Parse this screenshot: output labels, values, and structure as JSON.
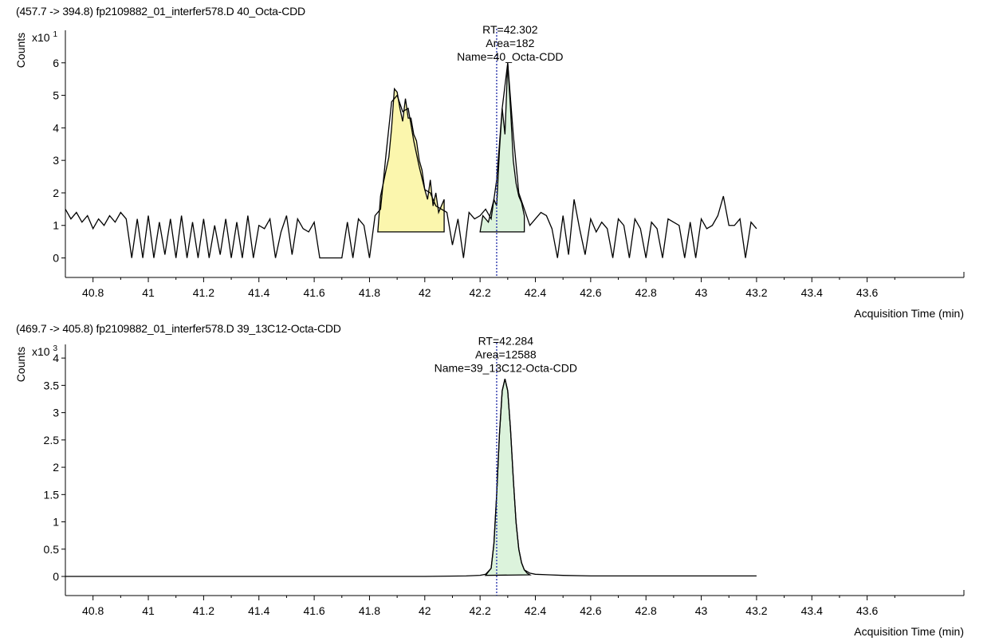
{
  "chart_data": [
    {
      "type": "line",
      "title": "(457.7 -> 394.8) fp2109882_01_interfer578.D 40_Octa-CDD",
      "ylabel": "Counts",
      "ymultiplier": "x10 1",
      "xlabel": "Acquisition Time (min)",
      "xlim": [
        40.7,
        43.95
      ],
      "ylim": [
        -0.6,
        7.0
      ],
      "yticks": [
        "0",
        "1",
        "2",
        "3",
        "4",
        "5",
        "6"
      ],
      "xticks": [
        "40.8",
        "41",
        "41.2",
        "41.4",
        "41.6",
        "41.8",
        "42",
        "42.2",
        "42.4",
        "42.6",
        "42.8",
        "43",
        "43.2",
        "43.4",
        "43.6"
      ],
      "grid": false,
      "marker_rt": 42.26,
      "annotation": [
        "RT=42.302",
        "Area=182",
        "Name=40_Octa-CDD"
      ],
      "annotation_at": {
        "x": 42.3,
        "y": 6.0
      },
      "peaks": [
        {
          "color": "#fbf6ad",
          "x": [
            41.83,
            41.84,
            41.87,
            41.88,
            41.89,
            41.9,
            41.91,
            41.92,
            41.93,
            41.94,
            41.95,
            41.96,
            41.97,
            41.98,
            41.99,
            42.0,
            42.01,
            42.02,
            42.03,
            42.04,
            42.05,
            42.07,
            42.07
          ],
          "y": [
            0.8,
            1.9,
            3.1,
            4.0,
            5.2,
            5.1,
            4.6,
            4.2,
            4.9,
            4.3,
            4.3,
            3.8,
            3.6,
            3.0,
            2.7,
            2.1,
            1.8,
            2.4,
            1.6,
            2.0,
            1.4,
            1.8,
            0.8
          ]
        },
        {
          "color": "#dcf3dc",
          "x": [
            42.2,
            42.21,
            42.23,
            42.25,
            42.26,
            42.27,
            42.28,
            42.29,
            42.3,
            42.31,
            42.32,
            42.33,
            42.34,
            42.35,
            42.36,
            42.36
          ],
          "y": [
            0.8,
            1.3,
            1.1,
            1.8,
            1.6,
            3.3,
            4.6,
            3.8,
            6.0,
            4.6,
            3.0,
            2.3,
            1.9,
            1.7,
            1.3,
            0.8
          ]
        }
      ],
      "series": [
        {
          "x": [
            40.7,
            40.72,
            40.74,
            40.76,
            40.78,
            40.8,
            40.82,
            40.84,
            40.86,
            40.88,
            40.9,
            40.92,
            40.94,
            40.96,
            40.98,
            41.0,
            41.02,
            41.04,
            41.06,
            41.08,
            41.1,
            41.12,
            41.14,
            41.16,
            41.18,
            41.2,
            41.22,
            41.24,
            41.26,
            41.28,
            41.3,
            41.32,
            41.34,
            41.36,
            41.38,
            41.4,
            41.42,
            41.44,
            41.46,
            41.48,
            41.5,
            41.52,
            41.54,
            41.56,
            41.58,
            41.6,
            41.62,
            41.64,
            41.66,
            41.68,
            41.7,
            41.72,
            41.74,
            41.76,
            41.78,
            41.8,
            41.82,
            41.84,
            41.86,
            41.88,
            41.9,
            41.92,
            41.94,
            41.96,
            41.98,
            42.0,
            42.02,
            42.04,
            42.06,
            42.08,
            42.1,
            42.12,
            42.14,
            42.16,
            42.18,
            42.2,
            42.22,
            42.24,
            42.26,
            42.28,
            42.3,
            42.32,
            42.34,
            42.36,
            42.38,
            42.4,
            42.42,
            42.44,
            42.46,
            42.48,
            42.5,
            42.52,
            42.54,
            42.56,
            42.58,
            42.6,
            42.62,
            42.64,
            42.66,
            42.68,
            42.7,
            42.72,
            42.74,
            42.76,
            42.78,
            42.8,
            42.82,
            42.84,
            42.86,
            42.88,
            42.9,
            42.92,
            42.94,
            42.96,
            42.98,
            43.0,
            43.02,
            43.04,
            43.06,
            43.08,
            43.1,
            43.12,
            43.14,
            43.16,
            43.18,
            43.2
          ],
          "y": [
            1.5,
            1.2,
            1.4,
            1.1,
            1.3,
            0.9,
            1.2,
            1.0,
            1.3,
            1.1,
            1.4,
            1.2,
            0.0,
            1.2,
            0.0,
            1.3,
            0.0,
            1.1,
            0.1,
            1.2,
            0.0,
            1.3,
            0.0,
            1.1,
            0.0,
            1.2,
            0.0,
            1.0,
            0.1,
            1.2,
            0.0,
            1.1,
            0.0,
            1.3,
            0.0,
            1.0,
            0.9,
            1.2,
            0.0,
            0.8,
            1.3,
            0.1,
            1.2,
            0.9,
            0.8,
            1.1,
            0.0,
            0.0,
            0.0,
            0.0,
            0.0,
            1.1,
            0.0,
            1.2,
            1.0,
            0.0,
            1.3,
            1.5,
            3.2,
            4.8,
            5.0,
            4.5,
            4.6,
            3.6,
            2.8,
            2.1,
            2.0,
            1.6,
            1.5,
            1.4,
            0.4,
            1.2,
            0.0,
            1.4,
            1.2,
            1.3,
            1.5,
            1.2,
            2.4,
            4.6,
            6.0,
            3.8,
            2.0,
            1.5,
            1.0,
            1.2,
            1.4,
            1.3,
            0.9,
            0.0,
            1.3,
            0.1,
            1.8,
            0.9,
            0.1,
            1.2,
            0.8,
            1.1,
            0.9,
            0.0,
            1.2,
            1.0,
            0.0,
            1.2,
            0.9,
            0.0,
            1.1,
            0.9,
            0.0,
            1.2,
            1.1,
            1.0,
            0.0,
            1.1,
            0.0,
            1.2,
            0.9,
            1.0,
            1.3,
            1.9,
            1.0,
            1.0,
            1.2,
            0.0,
            1.1,
            0.9
          ]
        }
      ]
    },
    {
      "type": "line",
      "title": "(469.7 -> 405.8) fp2109882_01_interfer578.D 39_13C12-Octa-CDD",
      "ylabel": "Counts",
      "ymultiplier": "x10 3",
      "xlabel": "Acquisition Time (min)",
      "xlim": [
        40.7,
        43.95
      ],
      "ylim": [
        -0.35,
        4.25
      ],
      "yticks": [
        "0",
        "0.5",
        "1",
        "1.5",
        "2",
        "2.5",
        "3",
        "3.5",
        "4"
      ],
      "xticks": [
        "40.8",
        "41",
        "41.2",
        "41.4",
        "41.6",
        "41.8",
        "42",
        "42.2",
        "42.4",
        "42.6",
        "42.8",
        "43",
        "43.2",
        "43.4",
        "43.6"
      ],
      "grid": false,
      "marker_rt": 42.26,
      "annotation": [
        "RT=42.284",
        "Area=12588",
        "Name=39_13C12-Octa-CDD"
      ],
      "annotation_at": {
        "x": 42.284,
        "y": 3.7
      },
      "peaks": [
        {
          "color": "#dcf3dc",
          "x": [
            42.22,
            42.24,
            42.25,
            42.26,
            42.27,
            42.28,
            42.29,
            42.3,
            42.31,
            42.32,
            42.33,
            42.34,
            42.35,
            42.36,
            42.37,
            42.38
          ],
          "y": [
            0.02,
            0.15,
            0.6,
            1.5,
            2.6,
            3.4,
            3.62,
            3.4,
            2.7,
            1.8,
            1.0,
            0.5,
            0.25,
            0.12,
            0.06,
            0.03
          ]
        }
      ],
      "series": [
        {
          "x": [
            40.7,
            41.5,
            42.0,
            42.15,
            42.2,
            42.22,
            42.24,
            42.25,
            42.26,
            42.27,
            42.28,
            42.29,
            42.3,
            42.31,
            42.32,
            42.33,
            42.34,
            42.35,
            42.36,
            42.38,
            42.4,
            42.45,
            42.5,
            42.6,
            42.8,
            43.0,
            43.2
          ],
          "y": [
            0.0,
            0.0,
            0.0,
            0.01,
            0.02,
            0.04,
            0.15,
            0.6,
            1.5,
            2.6,
            3.4,
            3.62,
            3.4,
            2.7,
            1.8,
            1.0,
            0.5,
            0.25,
            0.12,
            0.06,
            0.04,
            0.03,
            0.02,
            0.01,
            0.01,
            0.01,
            0.01
          ]
        }
      ]
    }
  ]
}
